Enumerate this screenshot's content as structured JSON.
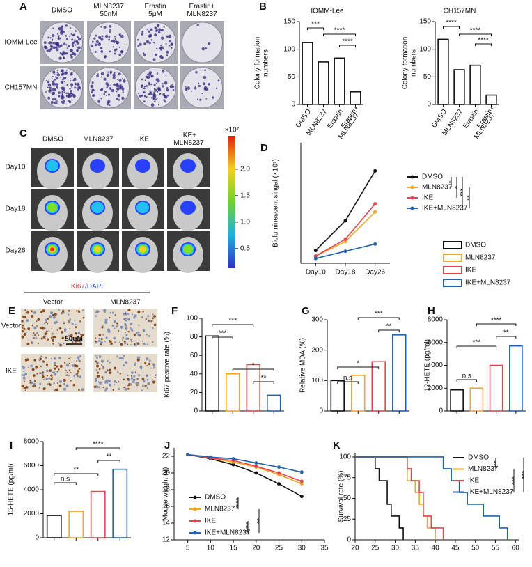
{
  "panels": {
    "A": {
      "letter": "A",
      "columns": [
        [
          "DMSO"
        ],
        [
          "MLN8237",
          "50nM"
        ],
        [
          "Erastin",
          "5μM"
        ],
        [
          "Erastin+",
          "MLN8237"
        ]
      ],
      "rows": [
        "IOMM-Lee",
        "CH157MN"
      ]
    },
    "C": {
      "letter": "C",
      "columns": [
        [
          "DMSO"
        ],
        [
          "MLN8237"
        ],
        [
          "IKE"
        ],
        [
          "IKE+",
          "MLN8237"
        ]
      ],
      "rows": [
        "Day10",
        "Day18",
        "Day26"
      ],
      "colorbar": {
        "unit": "×10⁷",
        "lim": [
          0.13,
          2.63
        ],
        "ticks": [
          0.5,
          {
            "value": 1,
            "label": "1.0"
          },
          1.5,
          {
            "value": 2,
            "label": "2.0"
          }
        ]
      }
    },
    "E": {
      "letter": "E",
      "title": [
        "Ki67",
        "/DAPI"
      ],
      "title_colors": [
        "#e0303a",
        "#1f4fb0"
      ],
      "columns": [
        "Vector",
        "MLN8237"
      ],
      "rows": [
        "Vector",
        "IKE"
      ],
      "scale": "50uM"
    },
    "legend": [
      {
        "name": "DMSO",
        "color": "#111111"
      },
      {
        "name": "MLN8237",
        "color": "#f5a623"
      },
      {
        "name": "IKE",
        "color": "#e8424c"
      },
      {
        "name": "IKE+MLN8237",
        "color": "#1f63b0"
      }
    ]
  },
  "chart_data": [
    {
      "type": "bar",
      "letter": "B",
      "title": "IOMM-Lee",
      "ylabel": [
        "Colony formation",
        "numbers"
      ],
      "categories": [
        "DMSO",
        "MLN8237",
        "Erastin",
        [
          "Erastin+",
          "MLN8237"
        ]
      ],
      "values": [
        112,
        77,
        84,
        23
      ],
      "colors": [
        "#111111",
        "#111111",
        "#111111",
        "#111111"
      ],
      "fill": "#ffffff",
      "ylim": [
        0,
        150
      ],
      "yticks": [
        0,
        50,
        100,
        150
      ],
      "annotations": [
        "***",
        "****",
        "****"
      ]
    },
    {
      "type": "bar",
      "title": "CH157MN",
      "ylabel": [
        "Colony formation",
        "numbers"
      ],
      "categories": [
        "DMSO",
        "MLN8237",
        "Erastin",
        [
          "Erastin+",
          "MLN8237"
        ]
      ],
      "values": [
        118,
        63,
        71,
        17
      ],
      "colors": [
        "#111111",
        "#111111",
        "#111111",
        "#111111"
      ],
      "fill": "#ffffff",
      "ylim": [
        0,
        150
      ],
      "yticks": [
        0,
        50,
        100,
        150
      ],
      "annotations": [
        "****",
        "****",
        "****"
      ]
    },
    {
      "type": "line",
      "letter": "D",
      "ylabel": "Bioluminescent singal (×10⁷)",
      "categories": [
        "Day10",
        "Day18",
        "Day26"
      ],
      "ylim": [
        0,
        15
      ],
      "series": [
        {
          "name": "DMSO",
          "color": "#111111",
          "values": [
            1.6,
            5.3,
            11.5
          ]
        },
        {
          "name": "MLN8237",
          "color": "#f5a623",
          "values": [
            0.9,
            2.7,
            6.4
          ]
        },
        {
          "name": "IKE",
          "color": "#e8424c",
          "values": [
            0.9,
            3.0,
            7.4
          ]
        },
        {
          "name": "IKE+MLN8237",
          "color": "#1f63b0",
          "values": [
            0.6,
            1.5,
            2.4
          ]
        }
      ],
      "annotations": [
        "*",
        "*",
        "***",
        "**"
      ]
    },
    {
      "type": "bar",
      "letter": "F",
      "ylabel": "Ki67 positive rate (%)",
      "values": [
        81,
        40,
        50,
        17
      ],
      "colors": [
        "#111111",
        "#f5a623",
        "#e8424c",
        "#1f63b0"
      ],
      "fill": "#ffffff",
      "ylim": [
        0,
        100
      ],
      "yticks": [
        0,
        20,
        40,
        60,
        80,
        100
      ],
      "annotations": [
        "***",
        "***",
        "*",
        "**"
      ]
    },
    {
      "type": "bar",
      "letter": "G",
      "ylabel": "Relative MDA (%)",
      "values": [
        100,
        117,
        162,
        250
      ],
      "colors": [
        "#111111",
        "#f5a623",
        "#e8424c",
        "#1f63b0"
      ],
      "fill": "#ffffff",
      "ylim": [
        0,
        300
      ],
      "yticks": [
        0,
        100,
        200,
        300
      ],
      "annotations": [
        "n.s",
        "*",
        "***",
        "**"
      ]
    },
    {
      "type": "bar",
      "letter": "H",
      "ylabel": "12-HETE (pg/ml)",
      "values": [
        1850,
        2000,
        4000,
        5700
      ],
      "colors": [
        "#111111",
        "#f5a623",
        "#e8424c",
        "#1f63b0"
      ],
      "fill": "#ffffff",
      "ylim": [
        0,
        8000
      ],
      "yticks": [
        0,
        2000,
        4000,
        6000,
        8000
      ],
      "annotations": [
        "n.s",
        "***",
        "****",
        "**"
      ]
    },
    {
      "type": "bar",
      "letter": "I",
      "ylabel": "15-HETE (pg/ml)",
      "values": [
        1850,
        2200,
        3850,
        5700
      ],
      "colors": [
        "#111111",
        "#f5a623",
        "#e8424c",
        "#1f63b0"
      ],
      "fill": "#ffffff",
      "ylim": [
        0,
        8000
      ],
      "yticks": [
        0,
        2000,
        4000,
        6000,
        8000
      ],
      "annotations": [
        "n.s",
        "**",
        "****",
        "**"
      ]
    },
    {
      "type": "line",
      "letter": "J",
      "ylabel": "Mouse weight (g)",
      "x": [
        5,
        10,
        15,
        20,
        25,
        30
      ],
      "xlim": [
        2,
        35
      ],
      "xticks": [
        5,
        10,
        15,
        20,
        25,
        30,
        35
      ],
      "ylim": [
        12,
        23
      ],
      "yticks": [
        12,
        14,
        16,
        18,
        20,
        22
      ],
      "series": [
        {
          "name": "DMSO",
          "color": "#111111",
          "values": [
            22.2,
            21.7,
            21.0,
            20.0,
            18.7,
            17.2
          ]
        },
        {
          "name": "MLN8237",
          "color": "#f5a623",
          "values": [
            22.2,
            21.8,
            21.3,
            20.7,
            19.8,
            18.7
          ]
        },
        {
          "name": "IKE",
          "color": "#e8424c",
          "values": [
            22.2,
            21.8,
            21.5,
            20.8,
            20.0,
            19.0
          ]
        },
        {
          "name": "IKE+MLN8237",
          "color": "#1f63b0",
          "values": [
            22.2,
            21.9,
            21.7,
            21.2,
            20.7,
            20.1
          ]
        }
      ],
      "annotations": [
        "****",
        "****",
        "**"
      ]
    },
    {
      "type": "survival",
      "letter": "K",
      "ylabel": "Survival rate (%)",
      "xlim": [
        20,
        61
      ],
      "xticks": [
        20,
        25,
        30,
        35,
        40,
        45,
        50,
        55,
        60
      ],
      "ylim": [
        0,
        105
      ],
      "yticks": [
        0,
        25,
        50,
        75,
        100
      ],
      "series": [
        {
          "name": "DMSO",
          "color": "#111111",
          "x": [
            20,
            25,
            26,
            28,
            29,
            31,
            32
          ],
          "values": [
            100,
            85.7,
            71.4,
            42.9,
            28.6,
            14.3,
            0
          ]
        },
        {
          "name": "MLN8237",
          "color": "#f5a623",
          "x": [
            20,
            33,
            35,
            36,
            37,
            38,
            40
          ],
          "values": [
            100,
            71.4,
            57.1,
            42.9,
            28.6,
            14.3,
            0
          ]
        },
        {
          "name": "IKE",
          "color": "#e8424c",
          "x": [
            20,
            33,
            34,
            36,
            37,
            39,
            42
          ],
          "values": [
            100,
            85.7,
            71.4,
            57.1,
            28.6,
            14.3,
            0
          ]
        },
        {
          "name": "IKE+MLN8237",
          "color": "#1f63b0",
          "x": [
            20,
            42,
            44,
            46,
            48,
            52,
            56,
            58
          ],
          "values": [
            100,
            85.7,
            71.4,
            57.1,
            42.9,
            28.6,
            14.3,
            0
          ]
        }
      ],
      "annotations": [
        "**",
        "***",
        "***"
      ]
    }
  ]
}
